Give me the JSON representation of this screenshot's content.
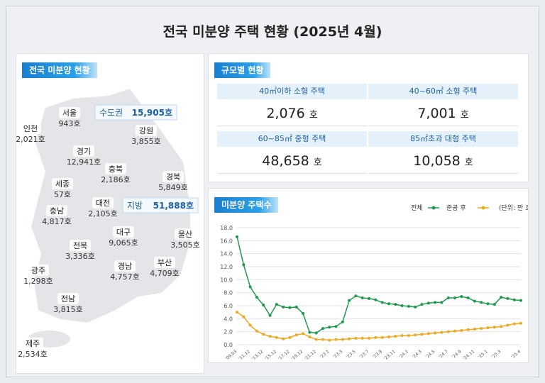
{
  "header": {
    "title": "전국 미분양 주택 현황 (2025년 4월)"
  },
  "regional": {
    "title": "전국 미분양 현황",
    "regions": [
      {
        "name": "인천",
        "value": "2,021호"
      },
      {
        "name": "서울",
        "value": "943호"
      },
      {
        "name": "경기",
        "value": "12,941호"
      },
      {
        "name": "강원",
        "value": "3,855호"
      },
      {
        "name": "충북",
        "value": "2,186호"
      },
      {
        "name": "경북",
        "value": "5,849호"
      },
      {
        "name": "세종",
        "value": "57호"
      },
      {
        "name": "대전",
        "value": "2,105호"
      },
      {
        "name": "충남",
        "value": "4,817호"
      },
      {
        "name": "대구",
        "value": "9,065호"
      },
      {
        "name": "울산",
        "value": "3,505호"
      },
      {
        "name": "전북",
        "value": "3,336호"
      },
      {
        "name": "경남",
        "value": "4,757호"
      },
      {
        "name": "부산",
        "value": "4,709호"
      },
      {
        "name": "광주",
        "value": "1,298호"
      },
      {
        "name": "전남",
        "value": "3,815호"
      },
      {
        "name": "제주",
        "value": "2,534호"
      }
    ],
    "metro": {
      "name": "수도권",
      "value": "15,905호"
    },
    "provinces": {
      "name": "지방",
      "value": "51,888호"
    }
  },
  "size": {
    "title": "규모별 현황",
    "cells": [
      {
        "label": "40㎡이하 소형 주택",
        "value": "2,076",
        "unit": "호"
      },
      {
        "label": "40~60㎡ 소형 주택",
        "value": "7,001",
        "unit": "호"
      },
      {
        "label": "60~85㎡ 중형 주택",
        "value": "48,658",
        "unit": "호"
      },
      {
        "label": "85㎡초과 대형 주택",
        "value": "10,058",
        "unit": "호"
      }
    ]
  },
  "chart_data": {
    "type": "line",
    "title": "미분양 주택수",
    "unit_note": "(단위: 만 호)",
    "categories": [
      "'09.03",
      null,
      "'11.12",
      null,
      "'13.12",
      null,
      "'15.12",
      null,
      "'17.12",
      null,
      "'19.12",
      null,
      "'21.12",
      null,
      "'23.1",
      null,
      "'23.3",
      null,
      "'23.5",
      null,
      "'23.7",
      null,
      "'23.9",
      null,
      "'23.11",
      null,
      "'24.1",
      null,
      "'24.3",
      null,
      "'24.5",
      null,
      "'24.7",
      null,
      "'24.9",
      null,
      "'24.11",
      null,
      "'25.1",
      null,
      "'25.3",
      null,
      null,
      "'25.4"
    ],
    "series": [
      {
        "name": "전체",
        "color": "#1e9a4e",
        "values": [
          16.6,
          12.3,
          8.9,
          7.3,
          6.1,
          4.5,
          6.2,
          5.8,
          5.7,
          5.8,
          4.8,
          1.9,
          1.8,
          2.5,
          2.7,
          2.8,
          3.5,
          6.8,
          7.5,
          7.2,
          7.1,
          6.9,
          6.5,
          6.3,
          6.2,
          6.0,
          5.9,
          5.8,
          6.2,
          6.4,
          6.5,
          6.5,
          7.2,
          7.2,
          7.4,
          7.2,
          6.7,
          6.5,
          6.3,
          6.2,
          7.3,
          7.1,
          6.9,
          6.8
        ]
      },
      {
        "name": "준공 후",
        "color": "#f0a81c",
        "values": [
          5.0,
          4.3,
          3.0,
          2.1,
          1.6,
          1.3,
          1.1,
          0.9,
          1.1,
          1.5,
          1.7,
          1.2,
          0.8,
          0.8,
          0.7,
          0.8,
          0.8,
          0.9,
          1.0,
          1.0,
          1.0,
          1.1,
          1.1,
          1.2,
          1.3,
          1.4,
          1.4,
          1.5,
          1.6,
          1.7,
          1.8,
          1.9,
          2.0,
          2.1,
          2.2,
          2.3,
          2.4,
          2.5,
          2.6,
          2.7,
          2.8,
          3.0,
          3.2,
          3.3
        ]
      }
    ],
    "ylim": [
      0,
      18
    ],
    "yticks": [
      {
        "value": 0,
        "label": "0.0"
      },
      {
        "value": 2,
        "label": "2.0"
      },
      {
        "value": 4,
        "label": "4.0"
      },
      {
        "value": 6,
        "label": "6.0"
      },
      {
        "value": 8,
        "label": "8.0"
      },
      {
        "value": 10,
        "label": "10.0"
      },
      {
        "value": 12,
        "label": "12.0"
      },
      {
        "value": 14,
        "label": "14.0"
      },
      {
        "value": 16,
        "label": "16.0"
      },
      {
        "value": 18,
        "label": "18.0"
      }
    ],
    "grid": true
  }
}
